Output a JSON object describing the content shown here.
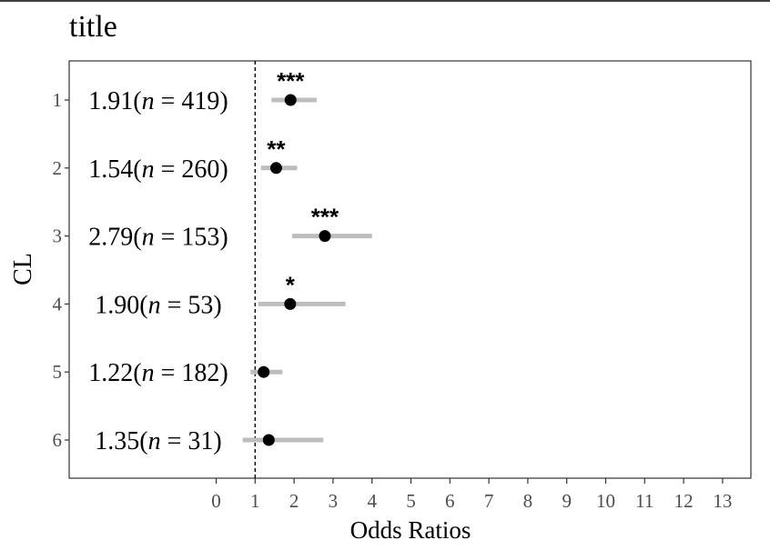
{
  "chart_data": {
    "type": "scatter",
    "title": "title",
    "xlabel": "Odds Ratios",
    "ylabel": "CL",
    "xlim": [
      -1.9,
      13.8
    ],
    "x_ticks": [
      "0",
      "1",
      "2",
      "3",
      "4",
      "5",
      "6",
      "7",
      "8",
      "9",
      "10",
      "11",
      "12",
      "13"
    ],
    "reference_line_x": 1,
    "categories": [
      "1",
      "2",
      "3",
      "4",
      "5",
      "6"
    ],
    "rows": [
      {
        "cl": "1",
        "estimate": 1.91,
        "ci_low": 1.42,
        "ci_high": 2.58,
        "label_value": "1.91",
        "n": "419",
        "significance": "***"
      },
      {
        "cl": "2",
        "estimate": 1.54,
        "ci_low": 1.15,
        "ci_high": 2.08,
        "label_value": "1.54",
        "n": "260",
        "significance": "**"
      },
      {
        "cl": "3",
        "estimate": 2.79,
        "ci_low": 1.95,
        "ci_high": 4.0,
        "label_value": "2.79",
        "n": "153",
        "significance": "***"
      },
      {
        "cl": "4",
        "estimate": 1.9,
        "ci_low": 1.08,
        "ci_high": 3.32,
        "label_value": "1.90",
        "n": "53",
        "significance": "*"
      },
      {
        "cl": "5",
        "estimate": 1.22,
        "ci_low": 0.88,
        "ci_high": 1.7,
        "label_value": "1.22",
        "n": "182",
        "significance": ""
      },
      {
        "cl": "6",
        "estimate": 1.35,
        "ci_low": 0.68,
        "ci_high": 2.75,
        "label_value": "1.35",
        "n": "31",
        "significance": ""
      }
    ],
    "grid": false,
    "colors": {
      "point": "#000000",
      "ci_bar": "#bdbdbd",
      "panel_border": "#333333",
      "axis_text": "#4d4d4d",
      "reference_line": "#000000"
    }
  }
}
